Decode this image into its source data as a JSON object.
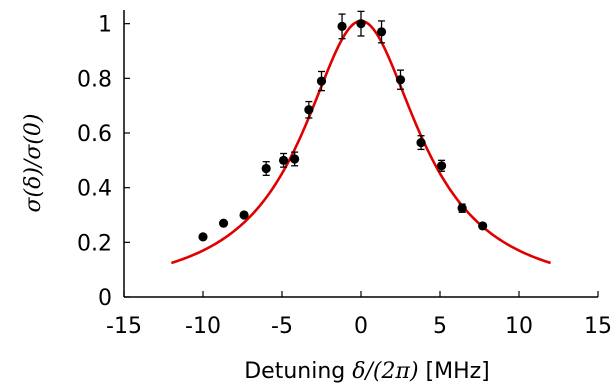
{
  "chart_data": {
    "type": "scatter",
    "xlabel_text": "Detuning ",
    "xlabel_math": "δ/(2π)",
    "xlabel_unit": " [MHz]",
    "ylabel": "σ(δ)/σ(0)",
    "xlim": [
      -15,
      15
    ],
    "ylim": [
      0,
      1.05
    ],
    "xticks": [
      -15,
      -10,
      -5,
      0,
      5,
      10,
      15
    ],
    "yticks": [
      0,
      0.2,
      0.4,
      0.6,
      0.8,
      1
    ],
    "xtick_labels": [
      "-15",
      "-10",
      "-5",
      "0",
      "5",
      "10",
      "15"
    ],
    "ytick_labels": [
      "0",
      "0.2",
      "0.4",
      "0.6",
      "0.8",
      "1"
    ],
    "grid": false,
    "point_color": "#000000",
    "fit_color": "#e00000",
    "points": [
      {
        "x": -10.0,
        "y": 0.22,
        "err": 0.0
      },
      {
        "x": -8.7,
        "y": 0.27,
        "err": 0.0
      },
      {
        "x": -7.4,
        "y": 0.3,
        "err": 0.0
      },
      {
        "x": -6.0,
        "y": 0.47,
        "err": 0.025
      },
      {
        "x": -4.9,
        "y": 0.5,
        "err": 0.025
      },
      {
        "x": -4.2,
        "y": 0.505,
        "err": 0.025
      },
      {
        "x": -3.3,
        "y": 0.685,
        "err": 0.03
      },
      {
        "x": -2.5,
        "y": 0.79,
        "err": 0.035
      },
      {
        "x": -1.2,
        "y": 0.99,
        "err": 0.045
      },
      {
        "x": 0.0,
        "y": 1.0,
        "err": 0.045
      },
      {
        "x": 1.3,
        "y": 0.97,
        "err": 0.04
      },
      {
        "x": 2.5,
        "y": 0.795,
        "err": 0.035
      },
      {
        "x": 3.8,
        "y": 0.565,
        "err": 0.025
      },
      {
        "x": 5.1,
        "y": 0.48,
        "err": 0.02
      },
      {
        "x": 6.4,
        "y": 0.325,
        "err": 0.015
      },
      {
        "x": 7.7,
        "y": 0.26,
        "err": 0.0
      }
    ],
    "fit": {
      "type": "lorentzian",
      "x_range": [
        -12,
        12
      ],
      "amplitude": 1.01,
      "fwhm": 9.0
    }
  }
}
